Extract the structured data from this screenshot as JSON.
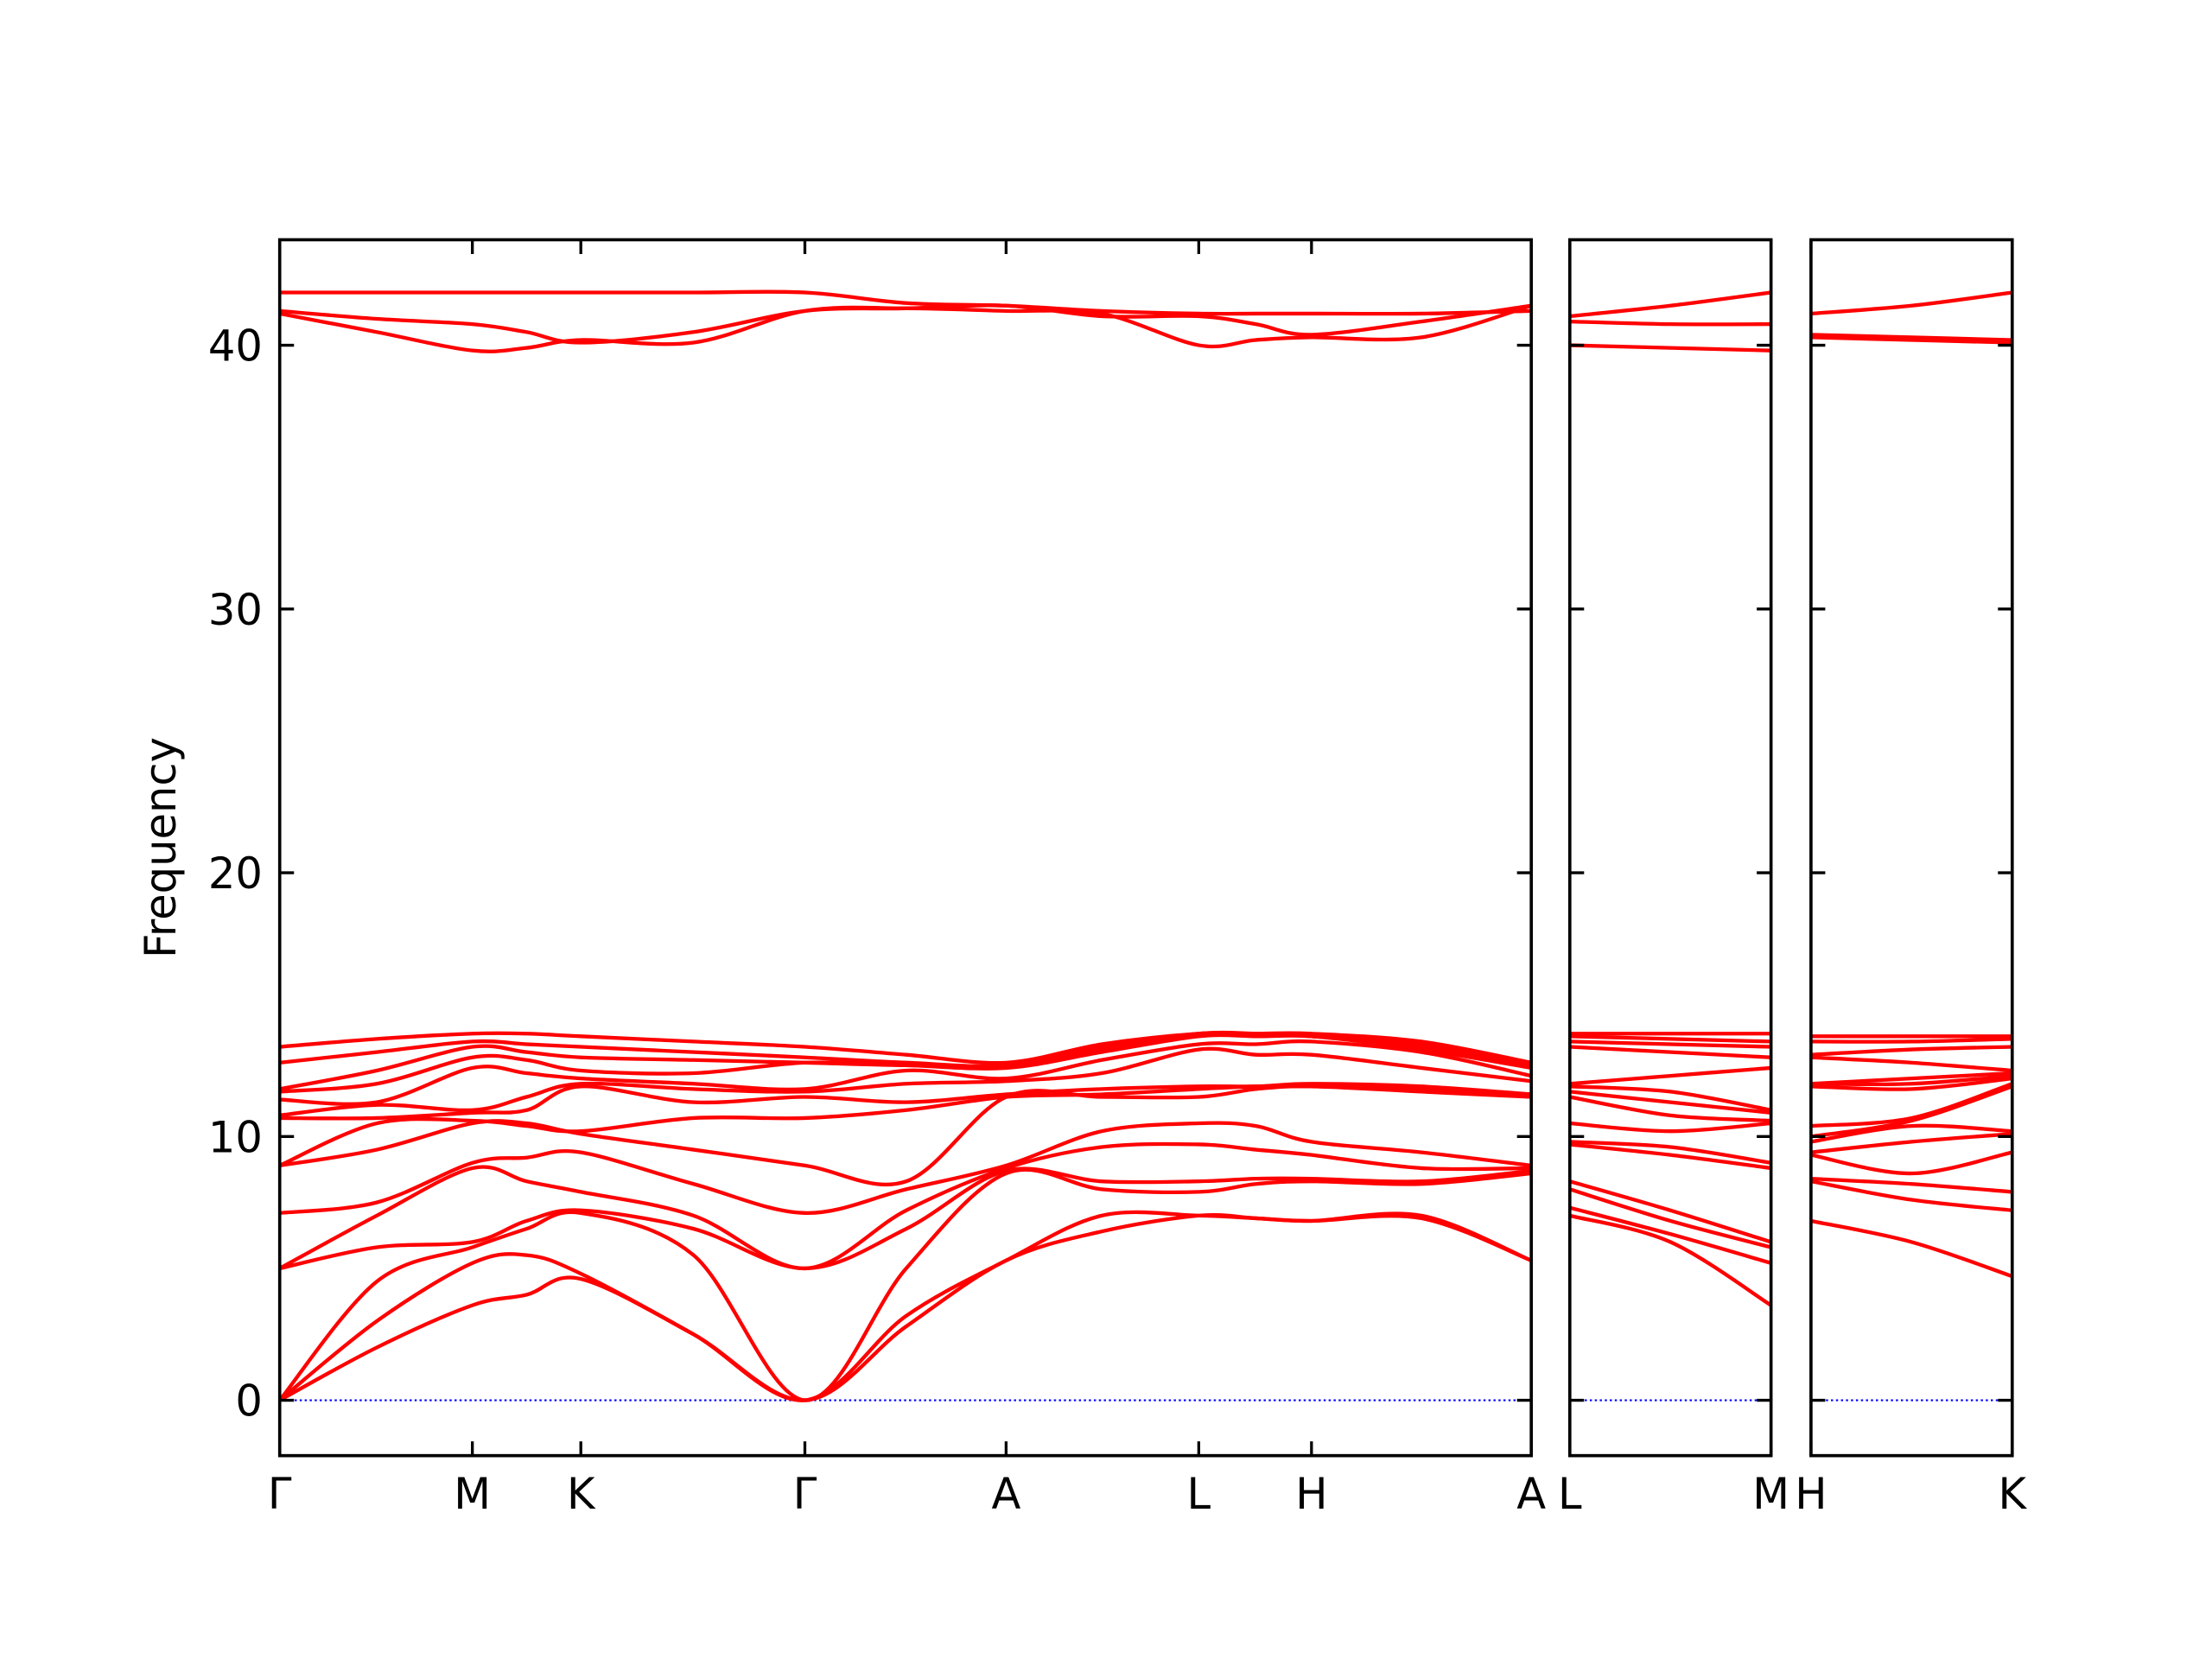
{
  "chart_data": [
    {
      "type": "line",
      "ylabel": "Frequency",
      "color": "#ff0000",
      "line_width": 2.6,
      "hline": 0,
      "hline_color": "#0000ff",
      "xlim": [
        0,
        8.77
      ],
      "ylim": [
        -2.1,
        44
      ],
      "xticks": [
        {
          "value": 0,
          "label": "Γ"
        },
        {
          "value": 1.35,
          "label": "M"
        },
        {
          "value": 2.11,
          "label": "K"
        },
        {
          "value": 3.68,
          "label": "Γ"
        },
        {
          "value": 5.09,
          "label": "A"
        },
        {
          "value": 6.44,
          "label": "L"
        },
        {
          "value": 7.23,
          "label": "H"
        },
        {
          "value": 8.77,
          "label": "A"
        }
      ],
      "yticks": [
        0,
        10,
        20,
        30,
        40
      ],
      "show_ytick_labels": true,
      "x": [
        0,
        0.68,
        1.35,
        1.73,
        2.11,
        2.9,
        3.68,
        4.39,
        5.09,
        5.76,
        6.44,
        6.84,
        7.23,
        8.0,
        8.77
      ],
      "series": [
        {
          "values": [
            0,
            2.0,
            3.6,
            4.0,
            4.6,
            2.5,
            0,
            2.8,
            5.3,
            6.4,
            7.0,
            6.9,
            6.8,
            6.9,
            5.3
          ]
        },
        {
          "values": [
            0,
            3.0,
            5.2,
            5.5,
            4.8,
            2.5,
            0,
            3.2,
            5.3,
            7.0,
            7.0,
            6.9,
            6.8,
            7.0,
            5.3
          ]
        },
        {
          "values": [
            0,
            4.5,
            5.8,
            6.5,
            7.1,
            5.5,
            0,
            5.0,
            8.6,
            8.0,
            7.9,
            8.2,
            8.3,
            8.2,
            8.6
          ]
        },
        {
          "values": [
            5.0,
            5.8,
            6.0,
            6.8,
            7.2,
            6.5,
            5.0,
            6.5,
            8.7,
            8.3,
            8.3,
            8.4,
            8.4,
            8.3,
            8.7
          ]
        },
        {
          "values": [
            5.0,
            7.0,
            8.8,
            8.3,
            7.9,
            7.0,
            5.0,
            7.2,
            8.8,
            9.6,
            9.7,
            9.5,
            9.3,
            8.8,
            8.8
          ]
        },
        {
          "values": [
            7.1,
            7.5,
            9.0,
            9.2,
            9.4,
            8.2,
            7.1,
            8.0,
            8.9,
            10.2,
            10.5,
            10.4,
            9.8,
            9.4,
            8.9
          ]
        },
        {
          "values": [
            8.9,
            9.5,
            10.5,
            10.5,
            10.1,
            9.5,
            8.9,
            8.3,
            11.5,
            11.5,
            11.5,
            11.8,
            11.9,
            11.7,
            11.5
          ]
        },
        {
          "values": [
            8.9,
            10.5,
            10.6,
            10.4,
            10.2,
            10.7,
            10.7,
            11.0,
            11.5,
            11.6,
            11.8,
            11.9,
            11.9,
            11.8,
            11.5
          ]
        },
        {
          "values": [
            10.7,
            10.7,
            10.9,
            11.0,
            11.9,
            11.3,
            11.5,
            11.3,
            11.6,
            11.8,
            11.9,
            11.9,
            12.0,
            11.9,
            11.6
          ]
        },
        {
          "values": [
            10.8,
            11.2,
            11.0,
            11.5,
            12.0,
            11.8,
            11.7,
            12.0,
            12.1,
            12.4,
            13.3,
            13.1,
            13.1,
            12.6,
            12.1
          ]
        },
        {
          "values": [
            11.4,
            11.3,
            12.6,
            12.4,
            12.2,
            12.0,
            11.8,
            12.5,
            12.2,
            12.9,
            13.5,
            13.5,
            13.6,
            13.2,
            12.3
          ]
        },
        {
          "values": [
            11.7,
            12.0,
            13.0,
            12.9,
            12.5,
            12.4,
            12.8,
            12.7,
            12.6,
            13.2,
            13.8,
            13.8,
            13.8,
            13.3,
            12.6
          ]
        },
        {
          "values": [
            11.8,
            12.5,
            13.4,
            13.2,
            13.0,
            12.9,
            12.8,
            12.7,
            12.7,
            13.3,
            13.9,
            13.8,
            13.8,
            13.4,
            12.7
          ]
        },
        {
          "values": [
            12.8,
            13.2,
            13.6,
            13.5,
            13.4,
            13.2,
            13.0,
            12.8,
            12.7,
            13.4,
            13.9,
            13.9,
            13.8,
            13.5,
            12.7
          ]
        },
        {
          "values": [
            13.4,
            13.7,
            13.9,
            13.9,
            13.8,
            13.6,
            13.4,
            13.1,
            12.8,
            13.5,
            13.9,
            13.9,
            13.9,
            13.6,
            12.8
          ]
        },
        {
          "values": [
            41.2,
            40.5,
            39.8,
            39.9,
            40.2,
            40.1,
            41.3,
            41.4,
            41.3,
            41.2,
            40.0,
            40.2,
            40.3,
            40.3,
            41.5
          ]
        },
        {
          "values": [
            41.3,
            41.0,
            40.8,
            40.5,
            40.1,
            40.5,
            41.3,
            41.4,
            41.5,
            41.1,
            41.1,
            40.8,
            40.4,
            40.9,
            41.5
          ]
        },
        {
          "values": [
            42.0,
            42.0,
            42.0,
            42.0,
            42.0,
            42.0,
            42.0,
            41.6,
            41.5,
            41.3,
            41.2,
            41.2,
            41.2,
            41.2,
            41.3
          ]
        }
      ]
    },
    {
      "type": "line",
      "color": "#ff0000",
      "line_width": 2.6,
      "hline": 0,
      "hline_color": "#0000ff",
      "xlim": [
        0,
        1.41
      ],
      "ylim": [
        -2.1,
        44
      ],
      "xticks": [
        {
          "value": 0,
          "label": "L"
        },
        {
          "value": 1.41,
          "label": "M"
        }
      ],
      "yticks": [
        0,
        10,
        20,
        30,
        40
      ],
      "show_ytick_labels": false,
      "x": [
        0,
        0.705,
        1.41
      ],
      "series": [
        {
          "values": [
            7.0,
            6.0,
            3.6
          ]
        },
        {
          "values": [
            7.3,
            6.3,
            5.2
          ]
        },
        {
          "values": [
            8.0,
            6.8,
            5.8
          ]
        },
        {
          "values": [
            8.3,
            7.2,
            6.0
          ]
        },
        {
          "values": [
            9.7,
            9.3,
            8.8
          ]
        },
        {
          "values": [
            9.8,
            9.6,
            9.0
          ]
        },
        {
          "values": [
            10.5,
            10.2,
            10.5
          ]
        },
        {
          "values": [
            11.5,
            10.8,
            10.6
          ]
        },
        {
          "values": [
            11.7,
            11.3,
            10.9
          ]
        },
        {
          "values": [
            11.9,
            11.7,
            11.0
          ]
        },
        {
          "values": [
            12.0,
            12.3,
            12.6
          ]
        },
        {
          "values": [
            13.4,
            13.2,
            13.0
          ]
        },
        {
          "values": [
            13.6,
            13.5,
            13.4
          ]
        },
        {
          "values": [
            13.8,
            13.7,
            13.6
          ]
        },
        {
          "values": [
            13.9,
            13.9,
            13.9
          ]
        },
        {
          "values": [
            40.0,
            39.9,
            39.8
          ]
        },
        {
          "values": [
            40.9,
            40.8,
            40.8
          ]
        },
        {
          "values": [
            41.1,
            41.5,
            42.0
          ]
        }
      ]
    },
    {
      "type": "line",
      "color": "#ff0000",
      "line_width": 2.6,
      "hline": 0,
      "hline_color": "#0000ff",
      "xlim": [
        0,
        1.41
      ],
      "ylim": [
        -2.1,
        44
      ],
      "xticks": [
        {
          "value": 0,
          "label": "H"
        },
        {
          "value": 1.41,
          "label": "K"
        }
      ],
      "yticks": [
        0,
        10,
        20,
        30,
        40
      ],
      "show_ytick_labels": false,
      "x": [
        0,
        0.705,
        1.41
      ],
      "series": [
        {
          "values": [
            6.8,
            6.0,
            4.7
          ]
        },
        {
          "values": [
            8.3,
            7.6,
            7.2
          ]
        },
        {
          "values": [
            8.4,
            8.2,
            7.9
          ]
        },
        {
          "values": [
            9.3,
            8.6,
            9.4
          ]
        },
        {
          "values": [
            9.4,
            9.8,
            10.1
          ]
        },
        {
          "values": [
            9.8,
            10.4,
            10.2
          ]
        },
        {
          "values": [
            10.0,
            10.6,
            11.9
          ]
        },
        {
          "values": [
            10.4,
            10.7,
            12.0
          ]
        },
        {
          "values": [
            11.9,
            11.8,
            12.2
          ]
        },
        {
          "values": [
            12.0,
            12.0,
            12.3
          ]
        },
        {
          "values": [
            12.0,
            12.2,
            12.4
          ]
        },
        {
          "values": [
            13.0,
            12.8,
            12.5
          ]
        },
        {
          "values": [
            13.1,
            13.3,
            13.4
          ]
        },
        {
          "values": [
            13.6,
            13.6,
            13.7
          ]
        },
        {
          "values": [
            13.8,
            13.8,
            13.8
          ]
        },
        {
          "values": [
            40.3,
            40.2,
            40.1
          ]
        },
        {
          "values": [
            40.4,
            40.3,
            40.2
          ]
        },
        {
          "values": [
            41.2,
            41.5,
            42.0
          ]
        }
      ]
    }
  ]
}
